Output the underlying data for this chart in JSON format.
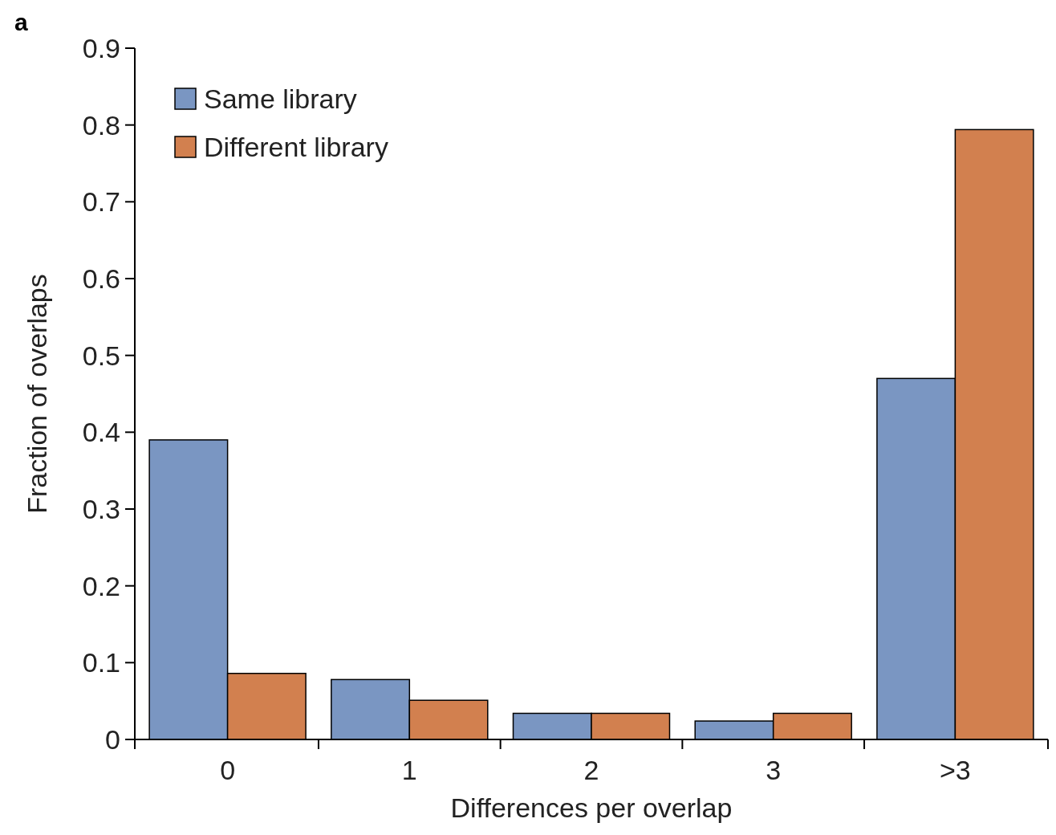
{
  "chart_data": {
    "type": "bar",
    "xlabel": "Differences per overlap",
    "ylabel": "Fraction of overlaps",
    "annotations": [
      "a"
    ],
    "categories": [
      "0",
      "1",
      "2",
      "3",
      ">3"
    ],
    "series": [
      {
        "name": "Same library",
        "color": "#7a96c2",
        "values": [
          0.39,
          0.078,
          0.034,
          0.024,
          0.47
        ]
      },
      {
        "name": "Different library",
        "color": "#d2804f",
        "values": [
          0.086,
          0.051,
          0.034,
          0.034,
          0.794
        ]
      }
    ],
    "ylim": [
      0,
      0.9
    ],
    "yticks": [
      0,
      0.1,
      0.2,
      0.3,
      0.4,
      0.5,
      0.6,
      0.7,
      0.8,
      0.9
    ],
    "grid": false,
    "legend": "top left"
  }
}
